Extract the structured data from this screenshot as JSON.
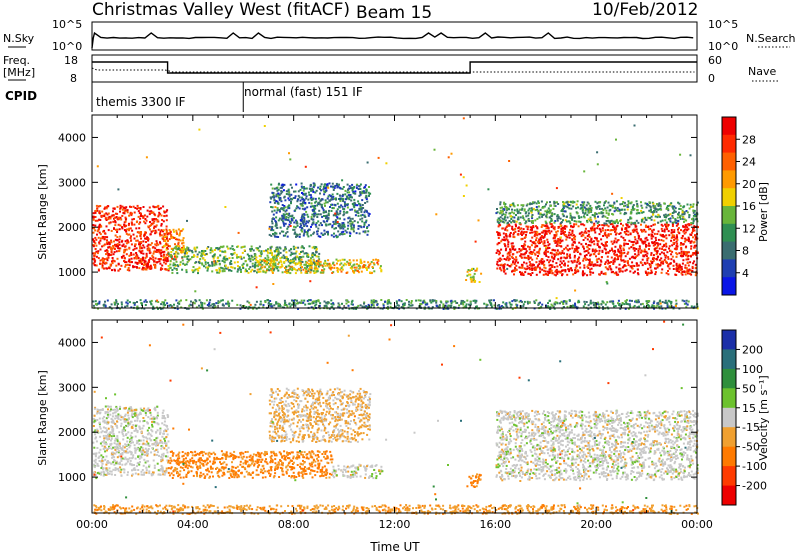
{
  "header": {
    "station": "Christmas Valley West (fitACF)",
    "beam": "Beam 15",
    "date": "10/Feb/2012"
  },
  "panels": {
    "nsky_label": "N.Sky",
    "nsearch_label": "N.Search",
    "freq_label": "Freq.",
    "freq_unit": "[MHz]",
    "nave_label": "Nave",
    "cpid_label": "CPID",
    "nsky_ticks": [
      "10^5",
      "10^0"
    ],
    "freq_ticks": [
      "18",
      "8"
    ],
    "nave_ticks": [
      "60",
      "0"
    ],
    "cpid_modes": [
      {
        "label": "themis 3300 IF",
        "start_h": 0,
        "end_h": 6
      },
      {
        "label": "normal (fast) 151 IF",
        "start_h": 6,
        "end_h": 24
      }
    ],
    "freq_trace": [
      {
        "start_h": 0,
        "end_h": 3,
        "level": "high"
      },
      {
        "start_h": 3,
        "end_h": 15,
        "level": "low"
      },
      {
        "start_h": 15,
        "end_h": 24,
        "level": "high"
      }
    ]
  },
  "colorbars": {
    "power": {
      "label": "Power [dB]",
      "ticks": [
        "28",
        "24",
        "20",
        "16",
        "12",
        "8",
        "4"
      ],
      "colors": [
        "#0a16e6",
        "#1f3fb2",
        "#3a6d70",
        "#2f8f52",
        "#68b53a",
        "#f0d000",
        "#ff9a00",
        "#ff6000",
        "#ff2a00",
        "#ee0000"
      ]
    },
    "velocity": {
      "label": "Velocity [m s⁻¹]",
      "ticks": [
        "200",
        "100",
        "50",
        "15",
        "-15",
        "-50",
        "-100",
        "-200"
      ],
      "colors": [
        "#1b2fa8",
        "#2a6f7a",
        "#2f8f3c",
        "#6cc22e",
        "#c8c8c8",
        "#f0a030",
        "#ff7a00",
        "#ff3b00",
        "#ee0000"
      ]
    }
  },
  "chart_data": [
    {
      "type": "heatmap",
      "parameter": "power",
      "ylabel": "Slant Range [km]",
      "ylim": [
        200,
        4500
      ],
      "yticks": [
        1000,
        2000,
        3000,
        4000
      ],
      "xlim": [
        0,
        24
      ],
      "cbar_label": "Power [dB]",
      "regions": [
        {
          "t0": 0.0,
          "t1": 3.0,
          "r0": 1050,
          "r1": 2500,
          "dB": 25
        },
        {
          "t0": 2.8,
          "t1": 3.6,
          "r0": 1300,
          "r1": 2000,
          "dB": 20
        },
        {
          "t0": 3.0,
          "t1": 9.0,
          "r0": 1000,
          "r1": 1600,
          "dB": 11
        },
        {
          "t0": 6.5,
          "t1": 11.5,
          "r0": 1000,
          "r1": 1300,
          "dB": 16
        },
        {
          "t0": 7.0,
          "t1": 11.0,
          "r0": 1800,
          "r1": 3000,
          "dB": 6
        },
        {
          "t0": 14.8,
          "t1": 15.4,
          "r0": 800,
          "r1": 1100,
          "dB": 15
        },
        {
          "t0": 16.0,
          "t1": 24.0,
          "r0": 950,
          "r1": 2100,
          "dB": 26
        },
        {
          "t0": 16.0,
          "t1": 24.0,
          "r0": 2100,
          "r1": 2600,
          "dB": 9
        },
        {
          "t0": 0.0,
          "t1": 24.0,
          "r0": 200,
          "r1": 400,
          "dB": 8
        }
      ]
    },
    {
      "type": "heatmap",
      "parameter": "velocity",
      "ylabel": "Slant Range [km]",
      "ylim": [
        200,
        4500
      ],
      "yticks": [
        1000,
        2000,
        3000,
        4000
      ],
      "xlabel": "Time UT",
      "xlim": [
        0,
        24
      ],
      "xticks": [
        "00:00",
        "04:00",
        "08:00",
        "12:00",
        "16:00",
        "20:00",
        "00:00"
      ],
      "cbar_label": "Velocity [m s⁻¹]",
      "regions": [
        {
          "t0": 0.0,
          "t1": 3.0,
          "r0": 1050,
          "r1": 2600,
          "v": 0
        },
        {
          "t0": 3.0,
          "t1": 9.5,
          "r0": 1000,
          "r1": 1600,
          "v": -60
        },
        {
          "t0": 9.5,
          "t1": 11.5,
          "r0": 1000,
          "r1": 1300,
          "v": 0
        },
        {
          "t0": 7.0,
          "t1": 11.0,
          "r0": 1800,
          "r1": 3000,
          "v": -20
        },
        {
          "t0": 14.8,
          "t1": 15.4,
          "r0": 800,
          "r1": 1100,
          "v": -60
        },
        {
          "t0": 16.0,
          "t1": 24.0,
          "r0": 950,
          "r1": 2500,
          "v": 0
        },
        {
          "t0": 0.0,
          "t1": 24.0,
          "r0": 200,
          "r1": 400,
          "v": -40
        }
      ]
    }
  ]
}
